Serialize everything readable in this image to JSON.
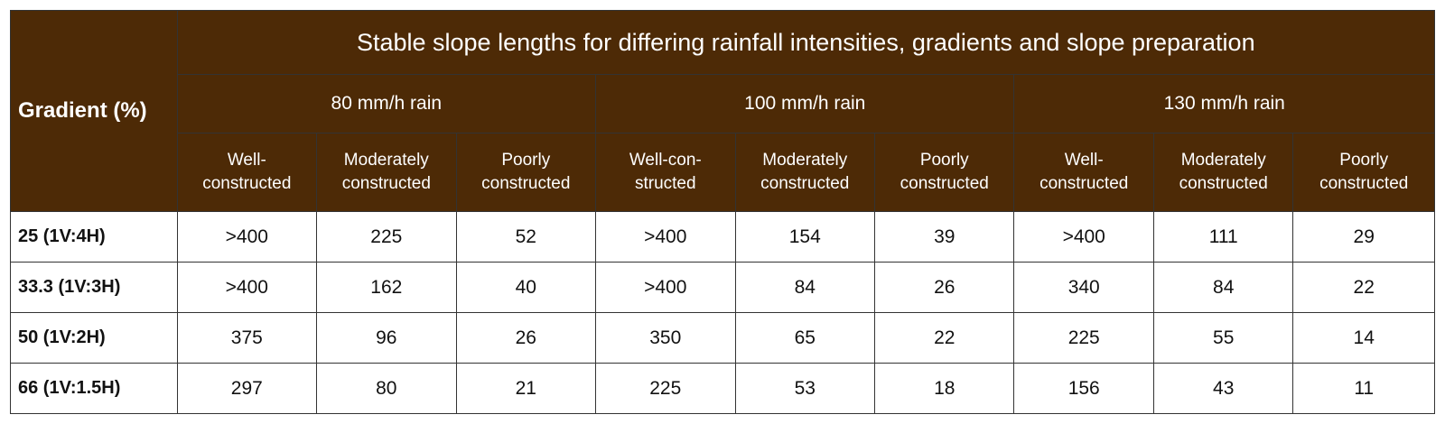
{
  "table": {
    "corner_label": "Gradient (%)",
    "title": "Stable slope lengths for differing rainfall intensities, gradients and slope preparation",
    "rain_groups": [
      "80 mm/h rain",
      "100 mm/h rain",
      "130 mm/h rain"
    ],
    "subheaders": [
      [
        "Well-",
        "constructed"
      ],
      [
        "Moderately",
        "constructed"
      ],
      [
        "Poorly",
        "constructed"
      ],
      [
        "Well-con-",
        "structed"
      ],
      [
        "Moderately",
        "constructed"
      ],
      [
        "Poorly",
        "constructed"
      ],
      [
        "Well-",
        "constructed"
      ],
      [
        "Moderately",
        "constructed"
      ],
      [
        "Poorly",
        "constructed"
      ]
    ],
    "rows": [
      {
        "label": "25 (1V:4H)",
        "values": [
          ">400",
          "225",
          "52",
          ">400",
          "154",
          "39",
          ">400",
          "111",
          "29"
        ]
      },
      {
        "label": "33.3 (1V:3H)",
        "values": [
          ">400",
          "162",
          "40",
          ">400",
          "84",
          "26",
          "340",
          "84",
          "22"
        ]
      },
      {
        "label": "50 (1V:2H)",
        "values": [
          "375",
          "96",
          "26",
          "350",
          "65",
          "22",
          "225",
          "55",
          "14"
        ]
      },
      {
        "label": "66 (1V:1.5H)",
        "values": [
          "297",
          "80",
          "21",
          "225",
          "53",
          "18",
          "156",
          "43",
          "11"
        ]
      }
    ]
  },
  "colors": {
    "header_bg": "#4d2a06",
    "header_text": "#ffffff",
    "grid_line": "#333333",
    "body_bg": "#ffffff"
  }
}
